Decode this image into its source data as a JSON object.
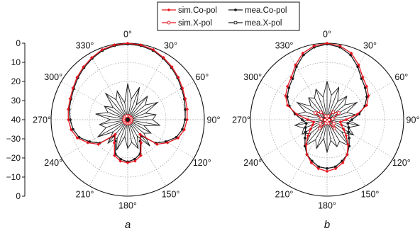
{
  "chart_data": [
    {
      "type": "polar",
      "subplot_label": "a",
      "rlim": [
        -40,
        0
      ],
      "radial_tick_labels": [
        "0",
        "10",
        "20",
        "30",
        "40",
        "−30",
        "−20",
        "−10",
        "0"
      ],
      "angle_tick_labels": [
        "0°",
        "30°",
        "60°",
        "90°",
        "120°",
        "150°",
        "180°",
        "210°",
        "240°",
        "270°",
        "300°",
        "330°"
      ],
      "grid": true,
      "series": [
        {
          "name": "sim.Co-pol",
          "color": "#e8141e",
          "marker": "filled-diamond",
          "angles_deg": [
            0,
            10,
            20,
            30,
            40,
            50,
            60,
            70,
            80,
            90,
            100,
            110,
            120,
            130,
            140,
            150,
            160,
            170,
            180,
            190,
            200,
            210,
            220,
            230,
            240,
            250,
            260,
            270,
            280,
            290,
            300,
            310,
            320,
            330,
            340,
            350
          ],
          "values_db": [
            0,
            -0.3,
            -1,
            -2.5,
            -4,
            -5.5,
            -7,
            -8,
            -8.5,
            -9,
            -10,
            -12,
            -16,
            -20,
            -30,
            -26,
            -20,
            -18,
            -17.5,
            -18,
            -20,
            -26,
            -30,
            -20,
            -16,
            -12,
            -10,
            -9,
            -8.5,
            -8,
            -7,
            -5.5,
            -4,
            -2.5,
            -1,
            -0.3
          ]
        },
        {
          "name": "mea.Co-pol",
          "color": "#1a1a1a",
          "marker": "filled-circle",
          "angles_deg": [
            0,
            10,
            20,
            30,
            40,
            50,
            60,
            70,
            80,
            90,
            100,
            110,
            120,
            130,
            140,
            150,
            160,
            170,
            180,
            190,
            200,
            210,
            220,
            230,
            240,
            250,
            260,
            270,
            280,
            290,
            300,
            310,
            320,
            330,
            340,
            350
          ],
          "values_db": [
            -0.5,
            -0.7,
            -1.5,
            -3,
            -4.5,
            -6,
            -7.5,
            -8.5,
            -9.5,
            -10,
            -11,
            -13,
            -17,
            -21,
            -29,
            -27,
            -21,
            -19,
            -18,
            -19,
            -21,
            -27,
            -29,
            -21,
            -17,
            -13,
            -11,
            -10,
            -9,
            -8.5,
            -7.5,
            -6,
            -4.5,
            -3,
            -1.5,
            -0.7
          ]
        },
        {
          "name": "sim.X-pol",
          "color": "#e8141e",
          "marker": "open-circle",
          "angles_deg": [
            0,
            20,
            40,
            60,
            80,
            100,
            120,
            140,
            160,
            180,
            200,
            220,
            240,
            260,
            280,
            300,
            320,
            340
          ],
          "values_db": [
            -38,
            -38,
            -38,
            -38,
            -38,
            -38,
            -38,
            -38,
            -38,
            -38,
            -38,
            -38,
            -38,
            -38,
            -38,
            -38,
            -38,
            -38
          ]
        },
        {
          "name": "mea.X-pol",
          "color": "#1a1a1a",
          "marker": "open-square",
          "angles_deg": [
            0,
            10,
            20,
            30,
            40,
            50,
            60,
            70,
            80,
            90,
            100,
            110,
            120,
            130,
            140,
            150,
            160,
            170,
            180,
            190,
            200,
            210,
            220,
            230,
            240,
            250,
            260,
            270,
            280,
            290,
            300,
            310,
            320,
            330,
            340,
            350
          ],
          "values_db": [
            -21,
            -29,
            -22,
            -31,
            -24,
            -28,
            -22,
            -30,
            -25,
            -27,
            -23,
            -31,
            -26,
            -29,
            -22,
            -30,
            -24,
            -28,
            -25,
            -31,
            -23,
            -29,
            -24,
            -30,
            -22,
            -28,
            -25,
            -31,
            -23,
            -29,
            -26,
            -30,
            -22,
            -28,
            -24,
            -31
          ]
        }
      ]
    },
    {
      "type": "polar",
      "subplot_label": "b",
      "rlim": [
        -40,
        0
      ],
      "angle_tick_labels": [
        "0°",
        "30°",
        "60°",
        "90°",
        "120°",
        "150°",
        "180°",
        "210°",
        "240°",
        "270°",
        "300°",
        "330°"
      ],
      "grid": true,
      "series": [
        {
          "name": "sim.Co-pol",
          "color": "#e8141e",
          "marker": "filled-diamond",
          "angles_deg": [
            0,
            10,
            20,
            30,
            40,
            50,
            60,
            70,
            80,
            90,
            100,
            110,
            120,
            130,
            140,
            150,
            160,
            170,
            180,
            190,
            200,
            210,
            220,
            230,
            240,
            250,
            260,
            270,
            280,
            290,
            300,
            310,
            320,
            330,
            340,
            350
          ],
          "values_db": [
            0,
            -0.8,
            -3,
            -7,
            -11,
            -13,
            -15,
            -18,
            -24,
            -30,
            -33,
            -32,
            -30,
            -27,
            -23,
            -19,
            -16,
            -14,
            -13,
            -14,
            -16,
            -19,
            -23,
            -27,
            -30,
            -32,
            -33,
            -30,
            -24,
            -18,
            -15,
            -13,
            -11,
            -7,
            -3,
            -0.8
          ]
        },
        {
          "name": "mea.Co-pol",
          "color": "#1a1a1a",
          "marker": "filled-circle",
          "angles_deg": [
            0,
            10,
            20,
            30,
            40,
            50,
            60,
            70,
            80,
            90,
            100,
            110,
            120,
            130,
            140,
            150,
            160,
            170,
            180,
            190,
            200,
            210,
            220,
            230,
            240,
            250,
            260,
            270,
            280,
            290,
            300,
            310,
            320,
            330,
            340,
            350
          ],
          "values_db": [
            -0.5,
            -1.5,
            -4,
            -8,
            -12,
            -14,
            -16,
            -19,
            -23,
            -27,
            -29,
            -28,
            -27,
            -25,
            -22,
            -19,
            -17,
            -15,
            -14.5,
            -15,
            -17,
            -19,
            -22,
            -25,
            -27,
            -28,
            -29,
            -27,
            -23,
            -19,
            -16,
            -14,
            -12,
            -8,
            -4,
            -1.5
          ]
        },
        {
          "name": "sim.X-pol",
          "color": "#e8141e",
          "marker": "open-circle",
          "angles_deg": [
            0,
            20,
            40,
            60,
            80,
            100,
            120,
            140,
            160,
            180,
            200,
            220,
            240,
            260,
            280,
            300,
            320,
            340
          ],
          "values_db": [
            -39,
            -38,
            -35,
            -33,
            -37,
            -39,
            -36,
            -34,
            -38,
            -39,
            -38,
            -34,
            -36,
            -39,
            -37,
            -33,
            -35,
            -38
          ]
        },
        {
          "name": "mea.X-pol",
          "color": "#1a1a1a",
          "marker": "open-square",
          "angles_deg": [
            0,
            10,
            20,
            30,
            40,
            50,
            60,
            70,
            80,
            90,
            100,
            110,
            120,
            130,
            140,
            150,
            160,
            170,
            180,
            190,
            200,
            210,
            220,
            230,
            240,
            250,
            260,
            270,
            280,
            290,
            300,
            310,
            320,
            330,
            340,
            350
          ],
          "values_db": [
            -20,
            -27,
            -22,
            -29,
            -24,
            -28,
            -22,
            -29,
            -25,
            -30,
            -23,
            -28,
            -24,
            -30,
            -22,
            -27,
            -25,
            -29,
            -23,
            -30,
            -24,
            -28,
            -22,
            -29,
            -25,
            -27,
            -23,
            -30,
            -24,
            -28,
            -22,
            -29,
            -25,
            -27,
            -23,
            -28
          ]
        }
      ]
    }
  ],
  "legend": {
    "placement": "top-center",
    "entries": [
      "sim.Co-pol",
      "mea.Co-pol",
      "sim.X-pol",
      "mea.X-pol"
    ]
  }
}
